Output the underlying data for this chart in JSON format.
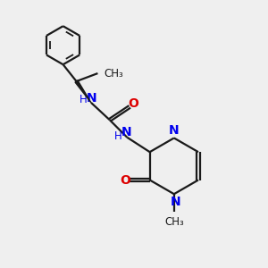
{
  "background_color": "#efefef",
  "bond_color": "#1a1a1a",
  "N_color": "#0000ee",
  "O_color": "#dd0000",
  "C_color": "#1a1a1a",
  "lw": 1.6,
  "fig_size": [
    3.0,
    3.0
  ],
  "dpi": 100,
  "xlim": [
    0,
    10
  ],
  "ylim": [
    0,
    10
  ]
}
